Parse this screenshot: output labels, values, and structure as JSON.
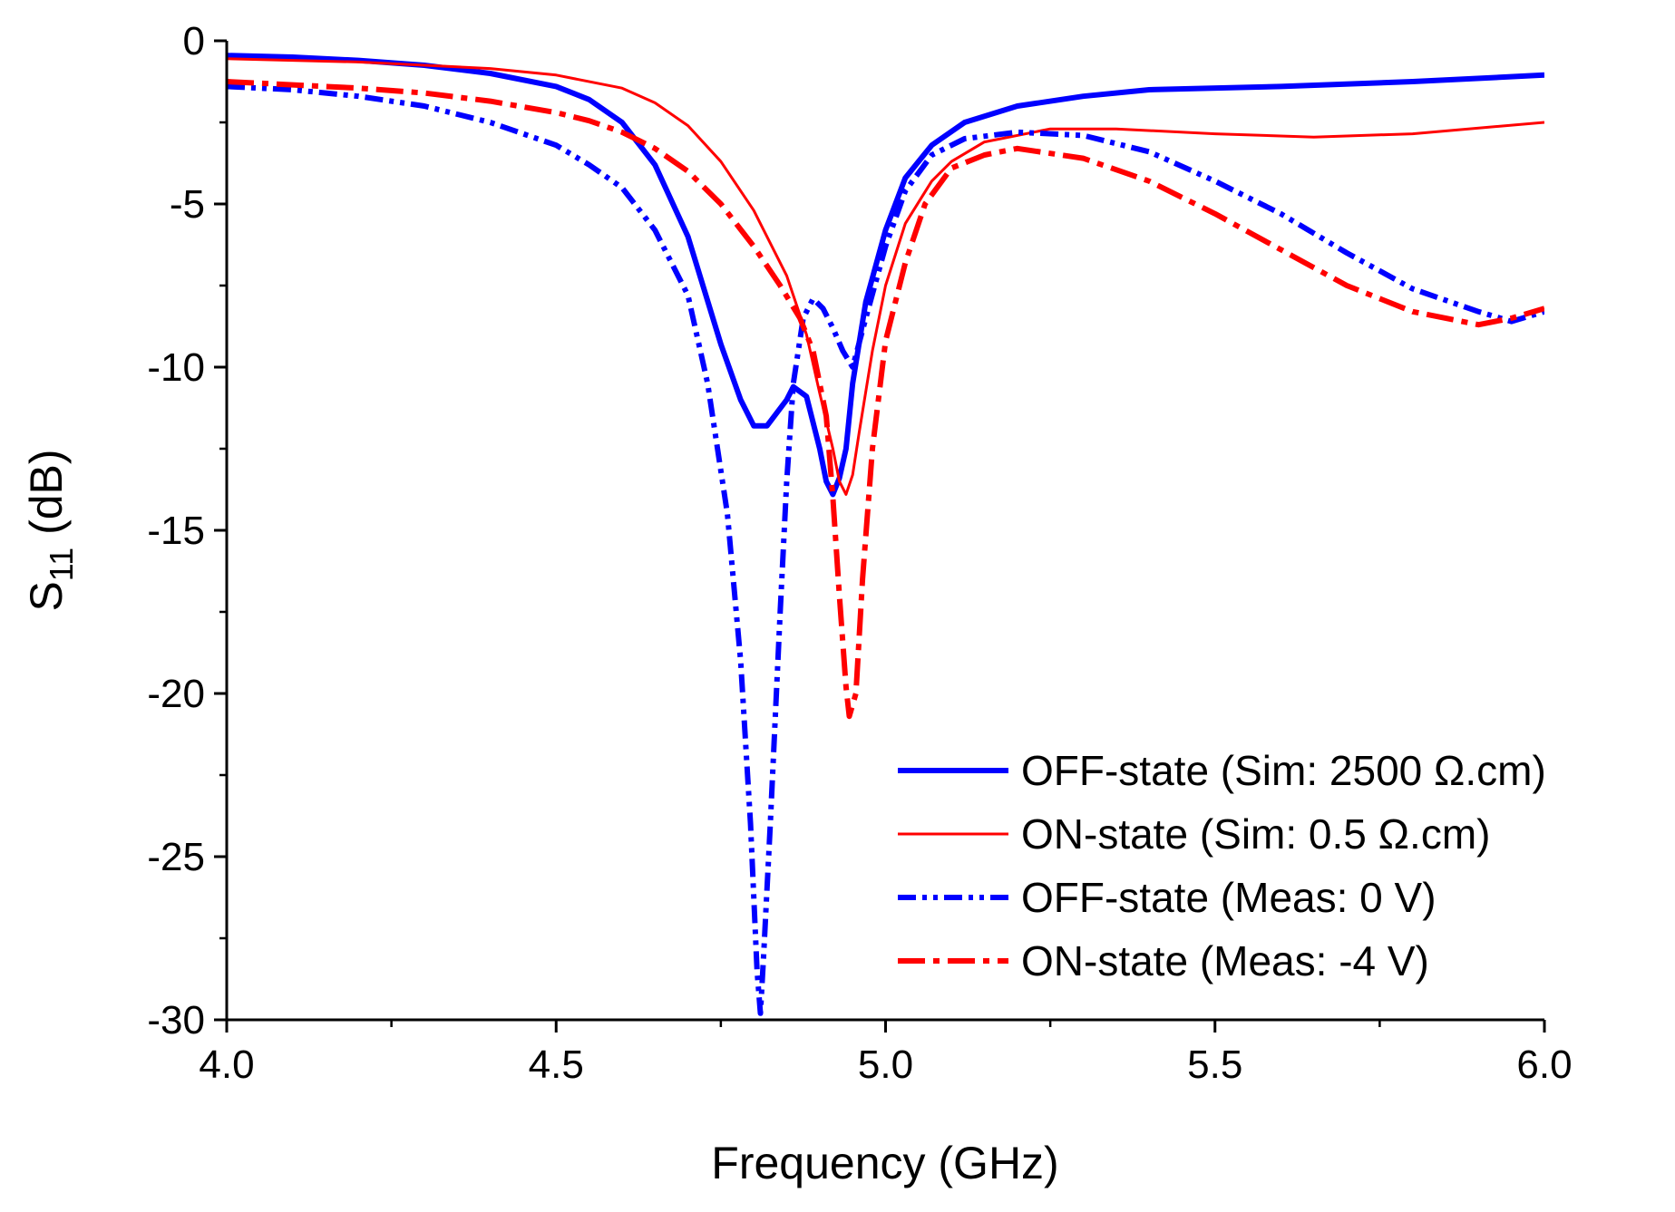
{
  "chart_data": {
    "type": "line",
    "title": "",
    "xlabel": "Frequency (GHz)",
    "ylabel": {
      "main": "S",
      "subscript": "11",
      "unit": " (dB)"
    },
    "xlim": [
      4.0,
      6.0
    ],
    "ylim": [
      -30,
      0
    ],
    "x_ticks": [
      4.0,
      4.5,
      5.0,
      5.5,
      6.0
    ],
    "x_tick_labels": [
      "4.0",
      "4.5",
      "5.0",
      "5.5",
      "6.0"
    ],
    "x_minor_ticks": [
      4.25,
      4.75,
      5.25,
      5.75
    ],
    "y_ticks": [
      0,
      -5,
      -10,
      -15,
      -20,
      -25,
      -30
    ],
    "y_tick_labels": [
      "0",
      "-5",
      "-10",
      "-15",
      "-20",
      "-25",
      "-30"
    ],
    "y_minor_ticks": [
      -2.5,
      -7.5,
      -12.5,
      -17.5,
      -22.5,
      -27.5
    ],
    "grid": false,
    "legend_position": "bottom-right",
    "series": [
      {
        "name": "OFF-state (Sim: 2500 Ω.cm)",
        "color": "#0000ff",
        "dash": "solid",
        "width": "thick",
        "points": [
          [
            4.0,
            -0.45
          ],
          [
            4.1,
            -0.5
          ],
          [
            4.2,
            -0.6
          ],
          [
            4.3,
            -0.75
          ],
          [
            4.4,
            -1.0
          ],
          [
            4.5,
            -1.4
          ],
          [
            4.55,
            -1.8
          ],
          [
            4.6,
            -2.5
          ],
          [
            4.65,
            -3.8
          ],
          [
            4.7,
            -6.0
          ],
          [
            4.75,
            -9.3
          ],
          [
            4.78,
            -11.0
          ],
          [
            4.8,
            -11.8
          ],
          [
            4.82,
            -11.8
          ],
          [
            4.85,
            -11.0
          ],
          [
            4.86,
            -10.6
          ],
          [
            4.88,
            -10.9
          ],
          [
            4.9,
            -12.5
          ],
          [
            4.91,
            -13.5
          ],
          [
            4.92,
            -13.9
          ],
          [
            4.93,
            -13.4
          ],
          [
            4.94,
            -12.5
          ],
          [
            4.95,
            -10.5
          ],
          [
            4.97,
            -8.0
          ],
          [
            5.0,
            -5.8
          ],
          [
            5.03,
            -4.2
          ],
          [
            5.07,
            -3.2
          ],
          [
            5.12,
            -2.5
          ],
          [
            5.2,
            -2.0
          ],
          [
            5.3,
            -1.7
          ],
          [
            5.4,
            -1.5
          ],
          [
            5.6,
            -1.4
          ],
          [
            5.8,
            -1.25
          ],
          [
            6.0,
            -1.05
          ]
        ]
      },
      {
        "name": "ON-state (Sim: 0.5 Ω.cm)",
        "color": "#ff0000",
        "dash": "solid",
        "width": "thin",
        "points": [
          [
            4.0,
            -0.55
          ],
          [
            4.2,
            -0.65
          ],
          [
            4.4,
            -0.85
          ],
          [
            4.5,
            -1.05
          ],
          [
            4.6,
            -1.45
          ],
          [
            4.65,
            -1.9
          ],
          [
            4.7,
            -2.6
          ],
          [
            4.75,
            -3.7
          ],
          [
            4.8,
            -5.2
          ],
          [
            4.85,
            -7.2
          ],
          [
            4.88,
            -9.0
          ],
          [
            4.9,
            -10.8
          ],
          [
            4.92,
            -12.5
          ],
          [
            4.93,
            -13.5
          ],
          [
            4.94,
            -13.9
          ],
          [
            4.95,
            -13.3
          ],
          [
            4.96,
            -12.0
          ],
          [
            4.98,
            -9.5
          ],
          [
            5.0,
            -7.5
          ],
          [
            5.03,
            -5.6
          ],
          [
            5.07,
            -4.3
          ],
          [
            5.1,
            -3.7
          ],
          [
            5.15,
            -3.1
          ],
          [
            5.25,
            -2.7
          ],
          [
            5.35,
            -2.7
          ],
          [
            5.5,
            -2.85
          ],
          [
            5.65,
            -2.95
          ],
          [
            5.8,
            -2.85
          ],
          [
            6.0,
            -2.5
          ]
        ]
      },
      {
        "name": "OFF-state (Meas: 0 V)",
        "color": "#0000ff",
        "dash": "dash-dot-dot",
        "width": "thick",
        "points": [
          [
            4.0,
            -1.4
          ],
          [
            4.1,
            -1.5
          ],
          [
            4.2,
            -1.7
          ],
          [
            4.3,
            -2.0
          ],
          [
            4.4,
            -2.5
          ],
          [
            4.5,
            -3.2
          ],
          [
            4.55,
            -3.8
          ],
          [
            4.6,
            -4.5
          ],
          [
            4.65,
            -5.8
          ],
          [
            4.7,
            -7.8
          ],
          [
            4.73,
            -10.5
          ],
          [
            4.76,
            -14.5
          ],
          [
            4.78,
            -19.0
          ],
          [
            4.795,
            -24.0
          ],
          [
            4.805,
            -28.5
          ],
          [
            4.81,
            -29.8
          ],
          [
            4.815,
            -28.0
          ],
          [
            4.825,
            -24.0
          ],
          [
            4.84,
            -17.5
          ],
          [
            4.85,
            -13.5
          ],
          [
            4.86,
            -10.5
          ],
          [
            4.875,
            -8.5
          ],
          [
            4.89,
            -7.9
          ],
          [
            4.905,
            -8.2
          ],
          [
            4.92,
            -8.8
          ],
          [
            4.935,
            -9.5
          ],
          [
            4.95,
            -10.0
          ],
          [
            4.97,
            -8.5
          ],
          [
            5.0,
            -6.3
          ],
          [
            5.03,
            -4.6
          ],
          [
            5.07,
            -3.5
          ],
          [
            5.12,
            -3.0
          ],
          [
            5.2,
            -2.8
          ],
          [
            5.3,
            -2.9
          ],
          [
            5.4,
            -3.4
          ],
          [
            5.5,
            -4.3
          ],
          [
            5.6,
            -5.3
          ],
          [
            5.7,
            -6.5
          ],
          [
            5.8,
            -7.6
          ],
          [
            5.9,
            -8.3
          ],
          [
            5.95,
            -8.6
          ],
          [
            6.0,
            -8.3
          ]
        ]
      },
      {
        "name": "ON-state (Meas: -4 V)",
        "color": "#ff0000",
        "dash": "dash-dot",
        "width": "thick",
        "points": [
          [
            4.0,
            -1.25
          ],
          [
            4.1,
            -1.35
          ],
          [
            4.2,
            -1.45
          ],
          [
            4.3,
            -1.6
          ],
          [
            4.4,
            -1.85
          ],
          [
            4.5,
            -2.2
          ],
          [
            4.55,
            -2.45
          ],
          [
            4.6,
            -2.8
          ],
          [
            4.65,
            -3.3
          ],
          [
            4.7,
            -4.0
          ],
          [
            4.75,
            -5.0
          ],
          [
            4.8,
            -6.3
          ],
          [
            4.84,
            -7.5
          ],
          [
            4.87,
            -8.5
          ],
          [
            4.89,
            -9.5
          ],
          [
            4.91,
            -11.5
          ],
          [
            4.92,
            -14.0
          ],
          [
            4.93,
            -17.0
          ],
          [
            4.94,
            -19.8
          ],
          [
            4.945,
            -20.7
          ],
          [
            4.955,
            -20.0
          ],
          [
            4.965,
            -16.5
          ],
          [
            4.98,
            -12.5
          ],
          [
            5.0,
            -9.2
          ],
          [
            5.03,
            -6.8
          ],
          [
            5.06,
            -5.0
          ],
          [
            5.1,
            -3.9
          ],
          [
            5.15,
            -3.5
          ],
          [
            5.2,
            -3.3
          ],
          [
            5.3,
            -3.6
          ],
          [
            5.4,
            -4.3
          ],
          [
            5.5,
            -5.3
          ],
          [
            5.6,
            -6.4
          ],
          [
            5.7,
            -7.5
          ],
          [
            5.8,
            -8.3
          ],
          [
            5.9,
            -8.7
          ],
          [
            5.95,
            -8.5
          ],
          [
            6.0,
            -8.2
          ]
        ]
      }
    ]
  }
}
